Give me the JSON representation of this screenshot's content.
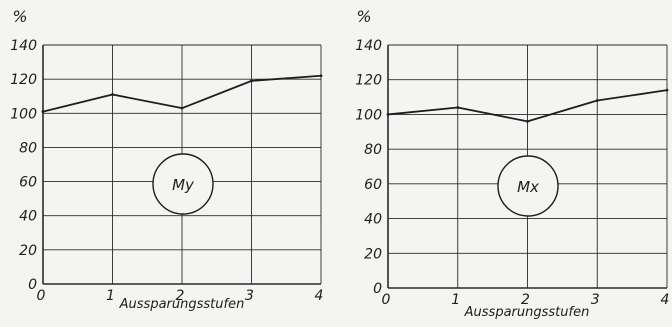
{
  "chart_data": [
    {
      "type": "line",
      "y_unit": "%",
      "xlabel": "Aussparungsstufen",
      "x_ticks": [
        "0",
        "1",
        "2",
        "3",
        "4"
      ],
      "y_ticks": [
        "0",
        "20",
        "40",
        "60",
        "80",
        "100",
        "120",
        "140"
      ],
      "ylim": [
        0,
        140
      ],
      "xlim": [
        0,
        4
      ],
      "grid": true,
      "series": [
        {
          "x": [
            0,
            1,
            2,
            3,
            4
          ],
          "values": [
            101,
            111,
            103,
            119,
            122
          ]
        }
      ],
      "annotation": "My"
    },
    {
      "type": "line",
      "y_unit": "%",
      "xlabel": "Aussparungsstufen",
      "x_ticks": [
        "0",
        "1",
        "2",
        "3",
        "4"
      ],
      "y_ticks": [
        "0",
        "20",
        "40",
        "60",
        "80",
        "100",
        "120",
        "140"
      ],
      "ylim": [
        0,
        140
      ],
      "xlim": [
        0,
        4
      ],
      "grid": true,
      "series": [
        {
          "x": [
            0,
            1,
            2,
            3,
            4
          ],
          "values": [
            100,
            104,
            96,
            108,
            114
          ]
        }
      ],
      "annotation": "Mx"
    }
  ],
  "colors": {
    "line": "#1e1e1e",
    "grid": "#2a2a2a",
    "background": "#f4f4f2"
  }
}
